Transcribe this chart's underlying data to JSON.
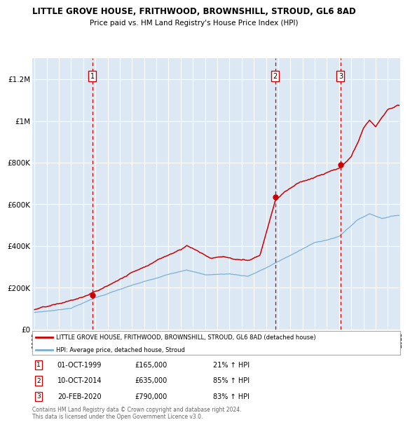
{
  "title": "LITTLE GROVE HOUSE, FRITHWOOD, BROWNSHILL, STROUD, GL6 8AD",
  "subtitle": "Price paid vs. HM Land Registry's House Price Index (HPI)",
  "plot_bg_color": "#dce9f5",
  "ylim": [
    0,
    1300000
  ],
  "yticks": [
    0,
    200000,
    400000,
    600000,
    800000,
    1000000,
    1200000
  ],
  "ytick_labels": [
    "£0",
    "£200K",
    "£400K",
    "£600K",
    "£800K",
    "£1M",
    "£1.2M"
  ],
  "xstart_year": 1995,
  "xend_year": 2025,
  "sale_prices": [
    165000,
    635000,
    790000
  ],
  "sale_labels": [
    "1",
    "2",
    "3"
  ],
  "sale_years": [
    1999.75,
    2014.75,
    2020.12
  ],
  "sale_info": [
    {
      "label": "1",
      "date": "01-OCT-1999",
      "price": "£165,000",
      "pct": "21%",
      "dir": "↑"
    },
    {
      "label": "2",
      "date": "10-OCT-2014",
      "price": "£635,000",
      "pct": "85%",
      "dir": "↑"
    },
    {
      "label": "3",
      "date": "20-FEB-2020",
      "price": "£790,000",
      "pct": "83%",
      "dir": "↑"
    }
  ],
  "legend_line1": "LITTLE GROVE HOUSE, FRITHWOOD, BROWNSHILL, STROUD, GL6 8AD (detached house)",
  "legend_line2": "HPI: Average price, detached house, Stroud",
  "footer": "Contains HM Land Registry data © Crown copyright and database right 2024.\nThis data is licensed under the Open Government Licence v3.0.",
  "line_color_house": "#cc0000",
  "line_color_hpi": "#7aafd4",
  "vline_color": "#cc0000"
}
